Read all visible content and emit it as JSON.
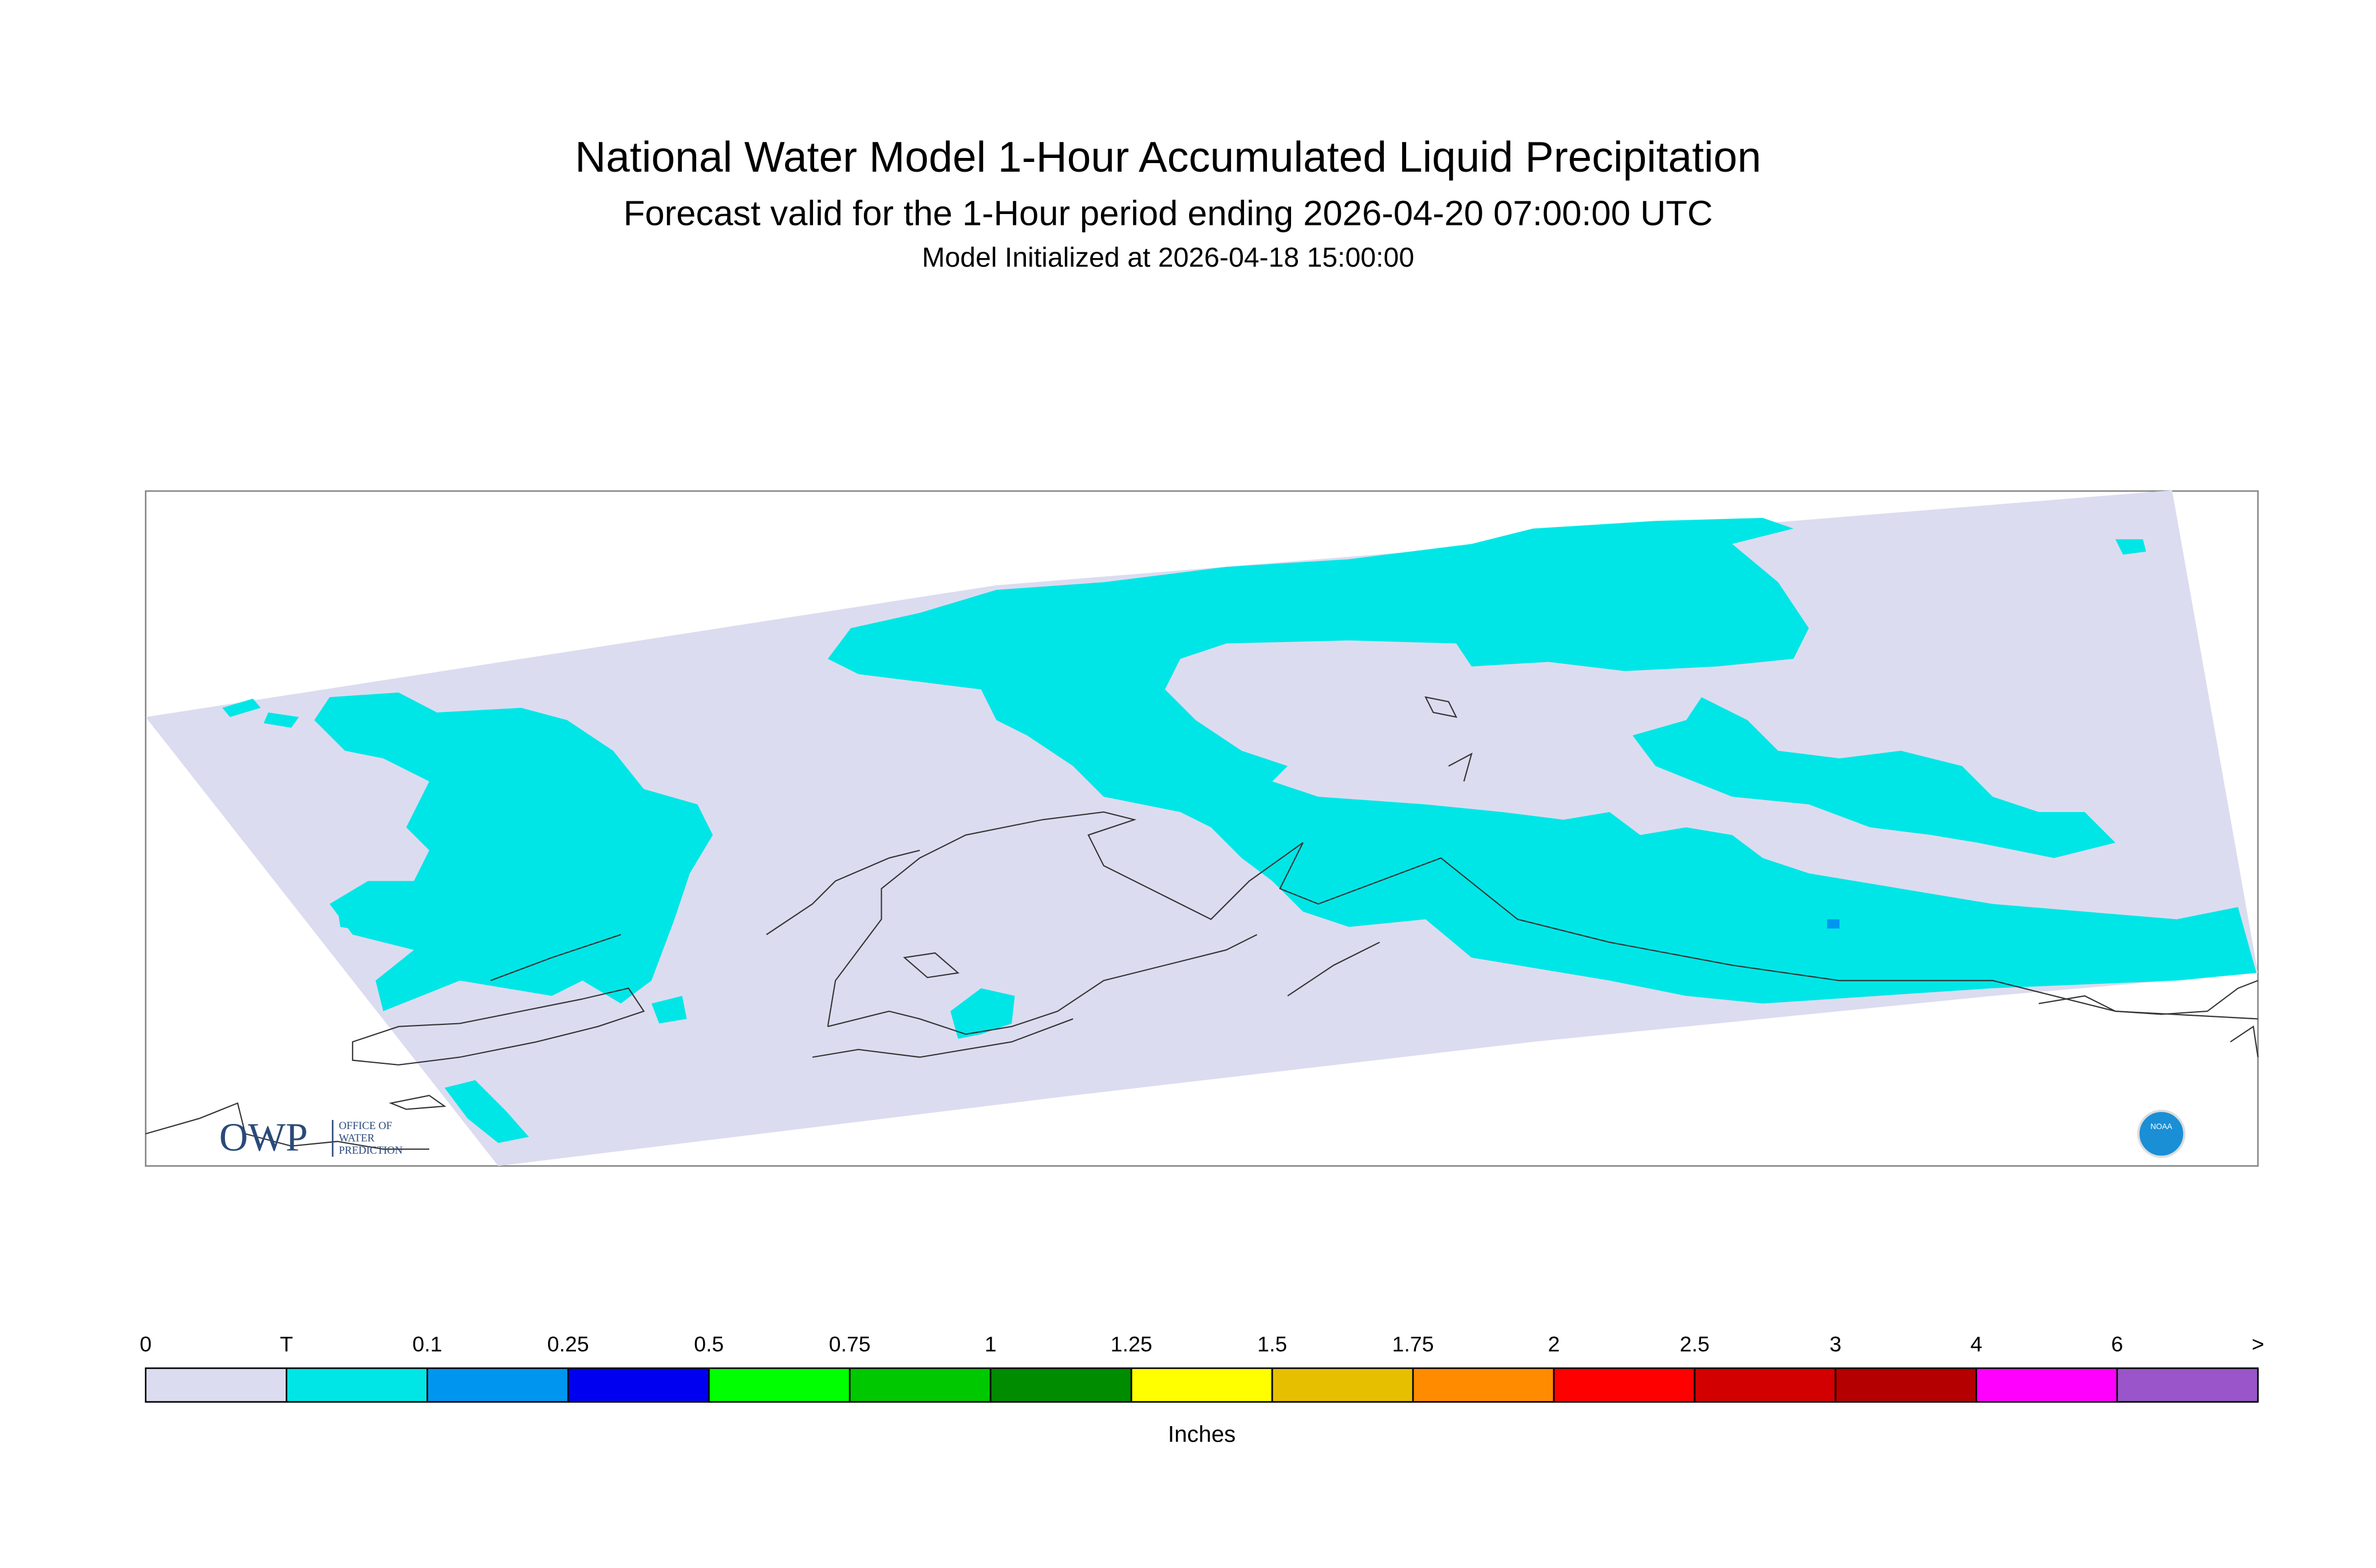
{
  "header": {
    "title": "National Water Model 1-Hour Accumulated Liquid Precipitation",
    "subtitle": "Forecast valid for the 1-Hour period ending 2026-04-20 07:00:00 UTC",
    "initialized": "Model Initialized at 2026-04-18 15:00:00"
  },
  "legend": {
    "labels": [
      "0",
      "T",
      "0.1",
      "0.25",
      "0.5",
      "0.75",
      "1",
      "1.25",
      "1.5",
      "1.75",
      "2",
      "2.5",
      "3",
      "4",
      "6",
      ">"
    ],
    "colors": [
      "#dcdcf0",
      "#00e6e6",
      "#0096f0",
      "#0000f0",
      "#00ff00",
      "#00c800",
      "#008c00",
      "#ffff00",
      "#e6c000",
      "#ff8c00",
      "#ff0000",
      "#d20000",
      "#b40000",
      "#ff00ff",
      "#9955c9"
    ],
    "unit": "Inches"
  },
  "logo": {
    "text": "OWP",
    "lines": [
      "OFFICE OF",
      "WATER",
      "PREDICTION"
    ]
  },
  "badge": "NOAA"
}
